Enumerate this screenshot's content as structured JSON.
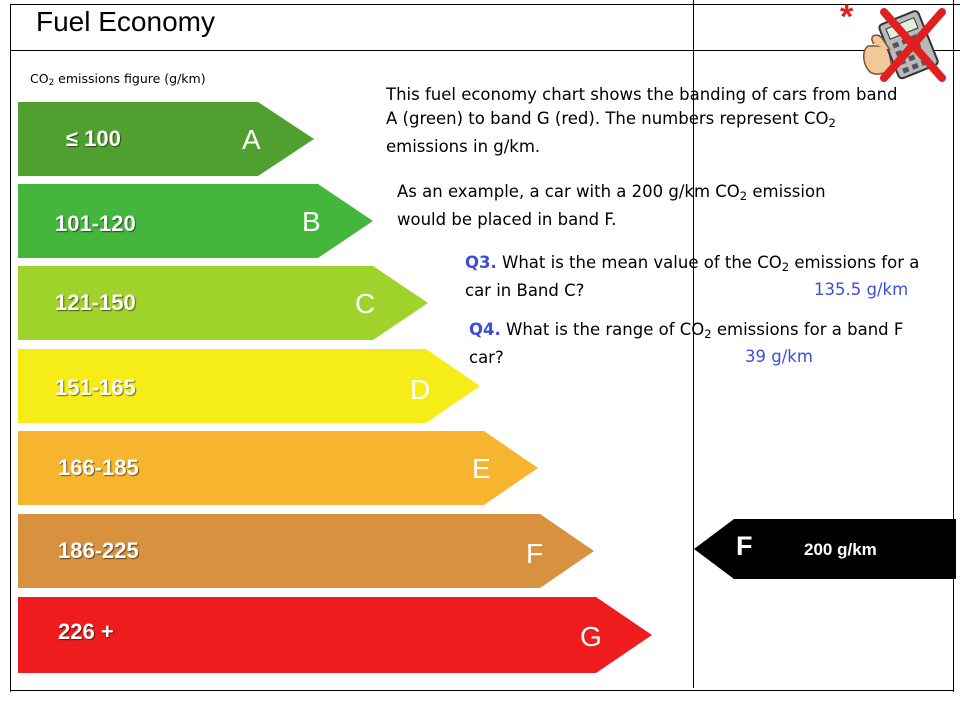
{
  "title": "Fuel Economy",
  "subtitle": {
    "prefix": "CO",
    "sub": "2",
    "suffix": " emissions figure (g/km)"
  },
  "bands": [
    {
      "range": "≤ 100",
      "letter": "A",
      "color": "#50a030"
    },
    {
      "range": "101-120",
      "letter": "B",
      "color": "#44b63c"
    },
    {
      "range": "121-150",
      "letter": "C",
      "color": "#9fd22a"
    },
    {
      "range": "151-165",
      "letter": "D",
      "color": "#f6ec18"
    },
    {
      "range": "166-185",
      "letter": "E",
      "color": "#f7b52f"
    },
    {
      "range": "186-225",
      "letter": "F",
      "color": "#d8913e"
    },
    {
      "range": "226 +",
      "letter": "G",
      "color": "#ee1c1c"
    }
  ],
  "intro": {
    "p1a": "This fuel economy chart shows the banding of cars from band A (green) to band G (red). The numbers represent CO",
    "p1sub": "2",
    "p1b": " emissions in g/km.",
    "p2a": "As an example, a car with a 200 g/km CO",
    "p2sub": "2",
    "p2b": " emission would be placed in band F."
  },
  "q3": {
    "num": "Q3.",
    "text_a": " What is the mean value of the  CO",
    "text_sub": "2",
    "text_b": " emissions for a car in Band C?",
    "answer": "135.5 g/km"
  },
  "q4": {
    "num": "Q4.",
    "text_a": " What is the range of CO",
    "text_sub": "2",
    "text_b": " emissions for a band F car?",
    "answer": "39 g/km"
  },
  "indicator": {
    "letter": "F",
    "value": "200 g/km",
    "color": "#000000"
  },
  "decoration": {
    "asterisk": "*",
    "icon": "calculator-icon",
    "cross_color": "#e02020"
  },
  "colors": {
    "accent": "#3b4fd8"
  }
}
